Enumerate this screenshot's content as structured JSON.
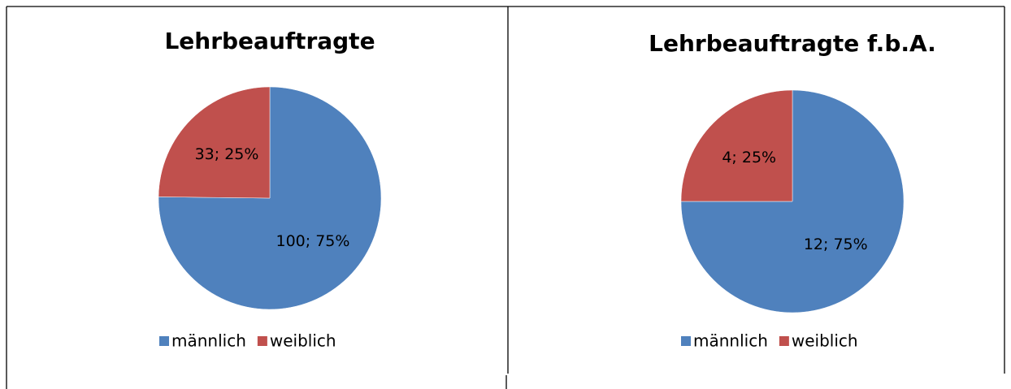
{
  "chart_data": [
    {
      "type": "pie",
      "title": "Lehrbeauftragte",
      "categories": [
        "männlich",
        "weiblich"
      ],
      "values": [
        100,
        33
      ],
      "value_labels": [
        "100; 75%",
        "33; 25%"
      ],
      "colors": [
        "#4f81bd",
        "#c0504d"
      ],
      "legend": "bottom"
    },
    {
      "type": "pie",
      "title": "Lehrbeauftragte f.b.A.",
      "categories": [
        "männlich",
        "weiblich"
      ],
      "values": [
        12,
        4
      ],
      "value_labels": [
        "12; 75%",
        "4; 25%"
      ],
      "colors": [
        "#4f81bd",
        "#c0504d"
      ],
      "legend": "bottom"
    }
  ]
}
